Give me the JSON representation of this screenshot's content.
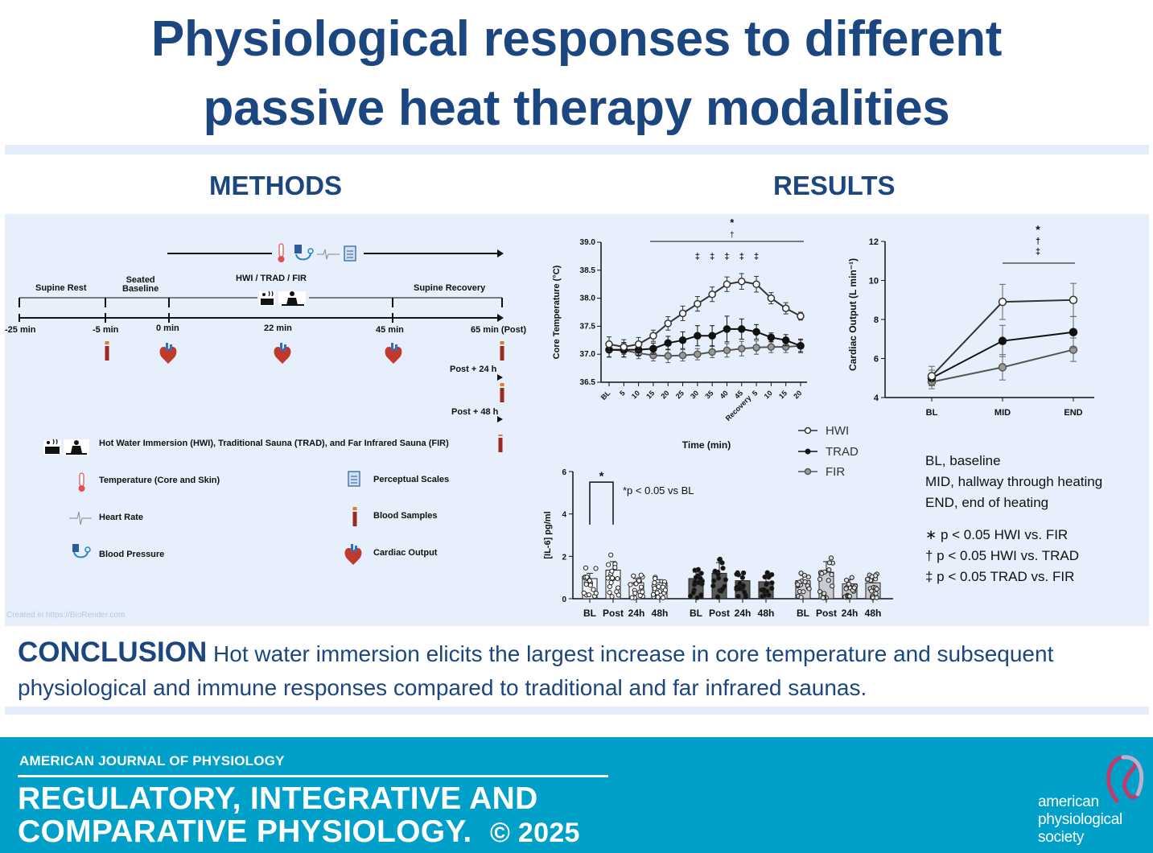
{
  "title": {
    "line1": "Physiological responses to different",
    "line2": "passive heat therapy modalities"
  },
  "sections": {
    "methods": "METHODS",
    "results": "RESULTS"
  },
  "colors": {
    "title": "#1b4680",
    "panel": "#e6effb",
    "footer": "#00a0c8",
    "hwi_fill": "#ffffff",
    "trad_fill": "#111111",
    "fir_fill": "#888888",
    "blood_tube": "#9b2a22"
  },
  "methods": {
    "timeline_phases": [
      "Supine Rest",
      "Seated Baseline",
      "HWI / TRAD / FIR",
      "Supine Recovery"
    ],
    "seated_baseline_l1": "Seated",
    "seated_baseline_l2": "Baseline",
    "timepoints": [
      "-25 min",
      "-5 min",
      "0 min",
      "22 min",
      "45 min",
      "65 min (Post)"
    ],
    "post24": "Post + 24 h",
    "post48": "Post + 48 h",
    "legend_main": "Hot Water Immersion (HWI), Traditional Sauna (TRAD), and Far Infrared Sauna (FIR)",
    "legend": [
      {
        "icon": "thermometer-icon",
        "label": "Temperature (Core and Skin)"
      },
      {
        "icon": "clipboard-icon",
        "label": "Perceptual Scales"
      },
      {
        "icon": "heart-rate-icon",
        "label": "Heart Rate"
      },
      {
        "icon": "blood-tube-icon",
        "label": "Blood Samples"
      },
      {
        "icon": "blood-pressure-icon",
        "label": "Blood Pressure"
      },
      {
        "icon": "heart-icon",
        "label": "Cardiac Output"
      }
    ],
    "credit": "Created in https://BioRender.com"
  },
  "chart_data": [
    {
      "type": "line",
      "title": "Core Temperature",
      "ylabel": "Core Temperature (°C)",
      "xlabel": "Time (min)",
      "ylim": [
        36.5,
        39.0
      ],
      "yticks": [
        "36.5",
        "37.0",
        "37.5",
        "38.0",
        "38.5",
        "39.0"
      ],
      "categories": [
        "BL",
        "5",
        "10",
        "15",
        "20",
        "25",
        "30",
        "35",
        "40",
        "45",
        "5",
        "10",
        "15",
        "20"
      ],
      "recovery_label": "Recovery",
      "series": [
        {
          "name": "HWI",
          "values": [
            37.18,
            37.13,
            37.18,
            37.33,
            37.55,
            37.73,
            37.9,
            38.07,
            38.25,
            38.3,
            38.25,
            38.0,
            37.82,
            37.68
          ],
          "errors": [
            0.13,
            0.13,
            0.12,
            0.1,
            0.12,
            0.13,
            0.13,
            0.13,
            0.13,
            0.14,
            0.14,
            0.1,
            0.1,
            0.07
          ]
        },
        {
          "name": "TRAD",
          "values": [
            37.08,
            37.08,
            37.08,
            37.1,
            37.2,
            37.25,
            37.33,
            37.33,
            37.45,
            37.45,
            37.4,
            37.3,
            37.25,
            37.15
          ],
          "errors": [
            0.13,
            0.13,
            0.1,
            0.1,
            0.12,
            0.15,
            0.18,
            0.18,
            0.23,
            0.18,
            0.13,
            0.08,
            0.1,
            0.12
          ]
        },
        {
          "name": "FIR",
          "values": [
            37.08,
            37.07,
            37.02,
            36.98,
            36.97,
            36.98,
            37.0,
            37.04,
            37.07,
            37.1,
            37.12,
            37.13,
            37.13,
            37.15
          ],
          "errors": [
            0.13,
            0.12,
            0.1,
            0.1,
            0.12,
            0.1,
            0.1,
            0.1,
            0.12,
            0.13,
            0.12,
            0.1,
            0.1,
            0.1
          ]
        }
      ],
      "sig_star": "*",
      "sig_dagger": "†",
      "sig_ddagger": "‡",
      "ddagger_at": [
        "30",
        "35",
        "40",
        "45",
        "5"
      ]
    },
    {
      "type": "line",
      "title": "Cardiac Output",
      "ylabel": "Cardiac Output (L min⁻¹)",
      "ylim": [
        4,
        12
      ],
      "yticks": [
        "4",
        "6",
        "8",
        "10",
        "12"
      ],
      "categories": [
        "BL",
        "MID",
        "END"
      ],
      "series": [
        {
          "name": "HWI",
          "values": [
            5.1,
            8.9,
            9.0
          ],
          "errors": [
            0.5,
            0.9,
            0.85
          ]
        },
        {
          "name": "TRAD",
          "values": [
            5.0,
            6.9,
            7.35
          ],
          "errors": [
            0.4,
            0.8,
            0.8
          ]
        },
        {
          "name": "FIR",
          "values": [
            4.8,
            5.55,
            6.45
          ],
          "errors": [
            0.35,
            0.65,
            0.6
          ]
        }
      ],
      "sig_symbols": [
        "*",
        "†",
        "‡"
      ]
    },
    {
      "type": "bar",
      "title": "IL-6",
      "ylabel": "[IL-6] pg/ml",
      "ylim": [
        0,
        6
      ],
      "yticks": [
        "0",
        "2",
        "4",
        "6"
      ],
      "group_categories": [
        "BL",
        "Post",
        "24h",
        "48h"
      ],
      "groups": [
        {
          "name": "HWI",
          "values": [
            0.95,
            1.35,
            0.75,
            0.75
          ],
          "errors": [
            0.25,
            0.4,
            0.2,
            0.15
          ]
        },
        {
          "name": "TRAD",
          "values": [
            0.95,
            1.2,
            0.85,
            0.8
          ],
          "errors": [
            0.3,
            0.5,
            0.3,
            0.2
          ]
        },
        {
          "name": "FIR",
          "values": [
            0.85,
            1.25,
            0.7,
            0.75
          ],
          "errors": [
            0.25,
            0.5,
            0.2,
            0.25
          ]
        }
      ],
      "annotation_star": "*",
      "annotation_text": "p < 0.05 vs BL",
      "annotation_p": "*p < 0.05 vs BL"
    }
  ],
  "legend": [
    "HWI",
    "TRAD",
    "FIR"
  ],
  "notes": {
    "bl": "BL, baseline",
    "mid": "MID, hallway through heating",
    "end": "END, end of heating",
    "sig1": "∗ p < 0.05 HWI vs. FIR",
    "sig2": "† p < 0.05 HWI vs. TRAD",
    "sig3": "‡ p < 0.05 TRAD vs. FIR"
  },
  "conclusion": {
    "heading": "CONCLUSION",
    "text": " Hot water immersion elicits the largest increase in core temperature and subsequent physiological and immune responses compared to traditional and far infrared saunas."
  },
  "footer": {
    "journal": "AMERICAN JOURNAL OF PHYSIOLOGY",
    "name_line1": "REGULATORY, INTEGRATIVE AND",
    "name_line2": "COMPARATIVE PHYSIOLOGY.",
    "copyright": "© 2025",
    "society_l1": "american",
    "society_l2": "physiological",
    "society_l3": "society"
  }
}
